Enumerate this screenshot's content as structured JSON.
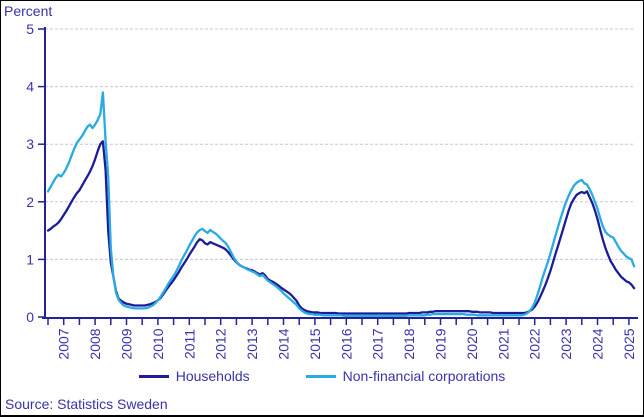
{
  "colors": {
    "text": "#3833aa",
    "axis": "#22229b",
    "gridline": "#c9c3e8",
    "households_line": "#1c1c99",
    "corporations_line": "#29abe2",
    "frame_border": "#000000"
  },
  "footer": {
    "source": "Source: Statistics Sweden"
  },
  "legend": {
    "households_label": "Households",
    "corporations_label": "Non-financial corporations"
  },
  "chart_data": {
    "type": "line",
    "title": "",
    "ylabel": "Percent",
    "xlabel": "",
    "ylim": [
      0,
      5
    ],
    "grid": "horizontal-dashed",
    "legend_position": "bottom-center",
    "y_ticks": [
      0,
      1,
      2,
      3,
      4,
      5
    ],
    "x_year_labels": [
      "2007",
      "2008",
      "2009",
      "2010",
      "2011",
      "2012",
      "2013",
      "2014",
      "2015",
      "2016",
      "2017",
      "2018",
      "2019",
      "2020",
      "2021",
      "2022",
      "2023",
      "2024",
      "2025"
    ],
    "x_minor_tick_step_years": 0.5,
    "frequency": "monthly",
    "x_start_year": 2007,
    "series": [
      {
        "name": "Households",
        "color": "#1c1c99",
        "values": [
          1.5,
          1.53,
          1.57,
          1.6,
          1.64,
          1.7,
          1.77,
          1.84,
          1.92,
          2.0,
          2.08,
          2.15,
          2.2,
          2.28,
          2.36,
          2.44,
          2.52,
          2.62,
          2.74,
          2.88,
          3.0,
          3.05,
          2.55,
          1.5,
          0.95,
          0.7,
          0.45,
          0.32,
          0.28,
          0.25,
          0.23,
          0.22,
          0.21,
          0.2,
          0.2,
          0.2,
          0.2,
          0.2,
          0.21,
          0.22,
          0.24,
          0.26,
          0.29,
          0.33,
          0.39,
          0.46,
          0.52,
          0.58,
          0.64,
          0.71,
          0.78,
          0.86,
          0.93,
          1.0,
          1.08,
          1.15,
          1.22,
          1.3,
          1.35,
          1.33,
          1.28,
          1.26,
          1.3,
          1.28,
          1.26,
          1.24,
          1.22,
          1.2,
          1.17,
          1.12,
          1.06,
          1.0,
          0.95,
          0.91,
          0.88,
          0.86,
          0.84,
          0.82,
          0.81,
          0.79,
          0.76,
          0.74,
          0.76,
          0.72,
          0.66,
          0.63,
          0.61,
          0.58,
          0.55,
          0.51,
          0.48,
          0.45,
          0.42,
          0.38,
          0.33,
          0.28,
          0.2,
          0.15,
          0.12,
          0.1,
          0.09,
          0.08,
          0.08,
          0.08,
          0.07,
          0.07,
          0.07,
          0.07,
          0.07,
          0.07,
          0.07,
          0.06,
          0.06,
          0.06,
          0.06,
          0.06,
          0.06,
          0.06,
          0.06,
          0.06,
          0.06,
          0.06,
          0.06,
          0.06,
          0.06,
          0.06,
          0.06,
          0.06,
          0.06,
          0.06,
          0.06,
          0.06,
          0.06,
          0.06,
          0.06,
          0.06,
          0.06,
          0.06,
          0.07,
          0.07,
          0.07,
          0.07,
          0.07,
          0.08,
          0.08,
          0.08,
          0.09,
          0.09,
          0.1,
          0.1,
          0.1,
          0.1,
          0.1,
          0.1,
          0.1,
          0.1,
          0.1,
          0.1,
          0.1,
          0.1,
          0.1,
          0.1,
          0.09,
          0.09,
          0.09,
          0.08,
          0.08,
          0.08,
          0.08,
          0.08,
          0.07,
          0.07,
          0.07,
          0.07,
          0.07,
          0.07,
          0.07,
          0.07,
          0.07,
          0.07,
          0.07,
          0.07,
          0.07,
          0.08,
          0.1,
          0.13,
          0.18,
          0.25,
          0.34,
          0.44,
          0.55,
          0.67,
          0.8,
          0.95,
          1.1,
          1.25,
          1.4,
          1.55,
          1.7,
          1.85,
          1.97,
          2.05,
          2.12,
          2.15,
          2.17,
          2.15,
          2.18,
          2.08,
          1.98,
          1.85,
          1.7,
          1.52,
          1.35,
          1.2,
          1.08,
          0.97,
          0.9,
          0.82,
          0.76,
          0.7,
          0.66,
          0.62,
          0.6,
          0.56,
          0.5
        ]
      },
      {
        "name": "Non-financial corporations",
        "color": "#29abe2",
        "values": [
          2.18,
          2.26,
          2.34,
          2.42,
          2.47,
          2.44,
          2.5,
          2.58,
          2.68,
          2.8,
          2.92,
          3.02,
          3.08,
          3.14,
          3.22,
          3.3,
          3.34,
          3.28,
          3.34,
          3.42,
          3.52,
          3.9,
          3.05,
          2.45,
          1.2,
          0.7,
          0.42,
          0.3,
          0.24,
          0.2,
          0.18,
          0.17,
          0.16,
          0.15,
          0.15,
          0.15,
          0.15,
          0.15,
          0.16,
          0.18,
          0.2,
          0.24,
          0.29,
          0.35,
          0.42,
          0.5,
          0.58,
          0.65,
          0.71,
          0.79,
          0.88,
          0.98,
          1.07,
          1.15,
          1.24,
          1.32,
          1.4,
          1.47,
          1.51,
          1.53,
          1.49,
          1.46,
          1.51,
          1.48,
          1.45,
          1.41,
          1.36,
          1.32,
          1.28,
          1.21,
          1.12,
          1.03,
          0.96,
          0.91,
          0.88,
          0.86,
          0.83,
          0.81,
          0.79,
          0.77,
          0.74,
          0.71,
          0.73,
          0.68,
          0.63,
          0.6,
          0.57,
          0.54,
          0.5,
          0.46,
          0.41,
          0.37,
          0.33,
          0.29,
          0.25,
          0.21,
          0.15,
          0.11,
          0.08,
          0.06,
          0.05,
          0.05,
          0.04,
          0.04,
          0.04,
          0.03,
          0.03,
          0.03,
          0.03,
          0.03,
          0.03,
          0.03,
          0.03,
          0.02,
          0.02,
          0.02,
          0.02,
          0.02,
          0.02,
          0.02,
          0.02,
          0.02,
          0.02,
          0.02,
          0.02,
          0.02,
          0.02,
          0.02,
          0.02,
          0.02,
          0.02,
          0.02,
          0.02,
          0.02,
          0.02,
          0.02,
          0.02,
          0.02,
          0.03,
          0.03,
          0.03,
          0.03,
          0.03,
          0.03,
          0.03,
          0.04,
          0.04,
          0.05,
          0.05,
          0.05,
          0.05,
          0.05,
          0.05,
          0.05,
          0.05,
          0.05,
          0.05,
          0.05,
          0.05,
          0.05,
          0.04,
          0.04,
          0.04,
          0.04,
          0.03,
          0.03,
          0.03,
          0.03,
          0.03,
          0.03,
          0.03,
          0.03,
          0.03,
          0.03,
          0.03,
          0.03,
          0.03,
          0.03,
          0.03,
          0.03,
          0.03,
          0.03,
          0.04,
          0.06,
          0.1,
          0.16,
          0.25,
          0.38,
          0.52,
          0.68,
          0.82,
          0.95,
          1.1,
          1.26,
          1.42,
          1.58,
          1.73,
          1.87,
          2.0,
          2.11,
          2.2,
          2.28,
          2.33,
          2.36,
          2.38,
          2.32,
          2.3,
          2.22,
          2.12,
          2.0,
          1.88,
          1.72,
          1.58,
          1.48,
          1.43,
          1.4,
          1.38,
          1.3,
          1.22,
          1.15,
          1.1,
          1.05,
          1.02,
          1.0,
          0.88
        ]
      }
    ]
  }
}
